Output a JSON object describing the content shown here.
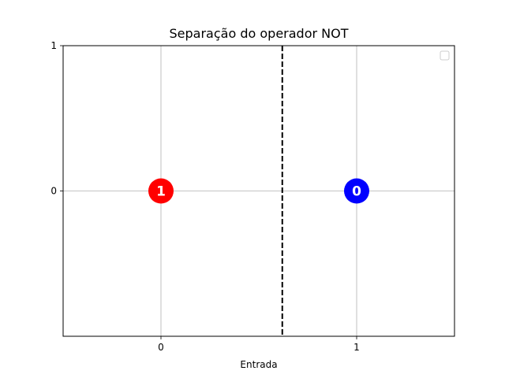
{
  "chart_data": {
    "type": "scatter",
    "title": "Separação do operador NOT",
    "xlabel": "Entrada",
    "ylabel": "",
    "xlim": [
      -0.5,
      1.5
    ],
    "ylim": [
      -1,
      1
    ],
    "xticks": [
      "0",
      "1"
    ],
    "yticks": [
      "0",
      "1"
    ],
    "grid": true,
    "legend": "upper right (empty)",
    "points": [
      {
        "x": 0,
        "y": 0,
        "label": "1",
        "color": "#ff0000"
      },
      {
        "x": 1,
        "y": 0,
        "label": "0",
        "color": "#0000ff"
      }
    ],
    "decision_boundary": {
      "x": 0.62,
      "style": "dashed",
      "color": "#000000"
    }
  }
}
